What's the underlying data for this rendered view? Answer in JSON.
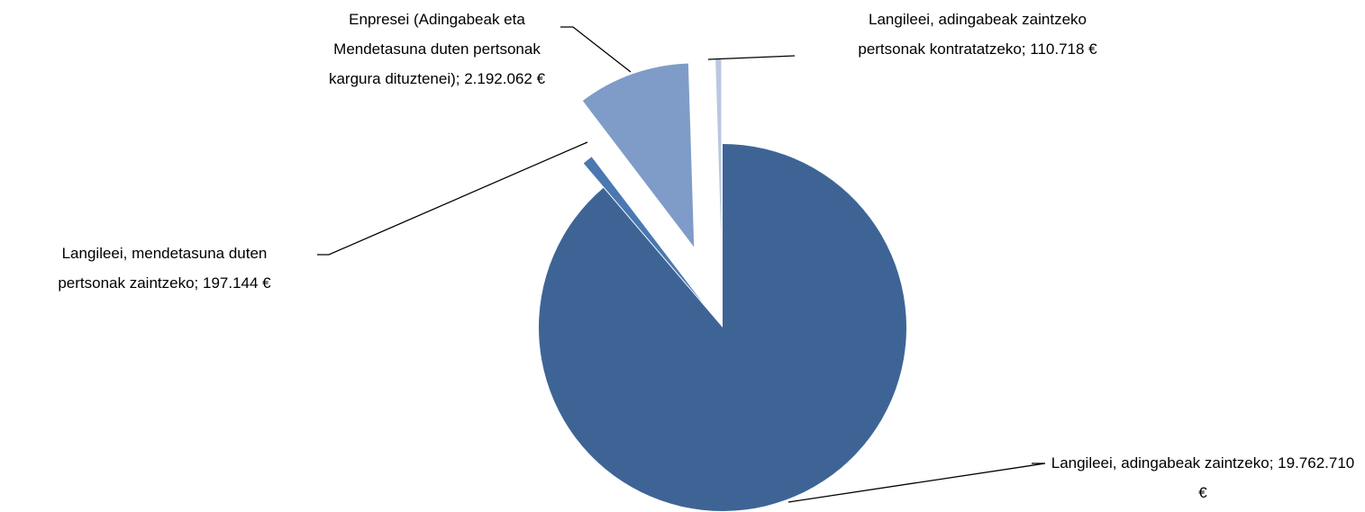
{
  "chart_data": {
    "type": "pie",
    "categories": [
      "Langileei, adingabeak zaintzeko;",
      "Langileei, mendetasuna duten pertsonak zaintzeko;",
      "Enpresei (Adingabeak eta Mendetasuna duten pertsonak kargura dituztenei);",
      "Langileei, adingabeak zaintzeko pertsonak kontratatzeko;"
    ],
    "values": [
      19762710,
      197144,
      2192062,
      110718
    ],
    "value_labels": [
      "19.762.710 €",
      "197.144 €",
      "2.192.062 €",
      "110.718 €"
    ],
    "colors": [
      "#3e6496",
      "#4a78b0",
      "#7f9cc8",
      "#b9c8e0"
    ]
  }
}
